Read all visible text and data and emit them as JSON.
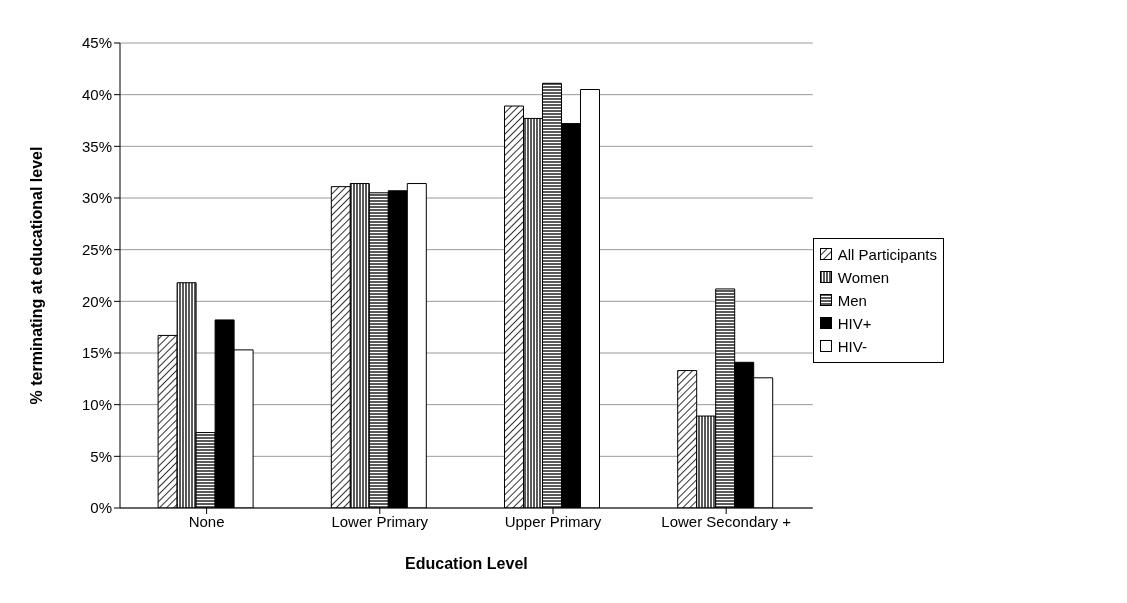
{
  "chart_data": {
    "type": "bar",
    "xlabel": "Education Level",
    "ylabel": "% terminating at educational level",
    "categories": [
      "None",
      "Lower Primary",
      "Upper Primary",
      "Lower Secondary +"
    ],
    "series": [
      {
        "name": "All Participants",
        "color": "#000000",
        "values": [
          16.7,
          31.1,
          38.9,
          13.3
        ]
      },
      {
        "name": "Women",
        "color": "#000000",
        "values": [
          21.8,
          31.4,
          37.7,
          8.9
        ]
      },
      {
        "name": "Men",
        "color": "#000000",
        "values": [
          7.3,
          30.5,
          41.1,
          21.2
        ]
      },
      {
        "name": "HIV+",
        "color": "#000000",
        "values": [
          18.2,
          30.7,
          37.2,
          14.1
        ]
      },
      {
        "name": "HIV-",
        "color": "#ffffff",
        "values": [
          15.3,
          31.4,
          40.5,
          12.6
        ]
      }
    ],
    "ylim": [
      0,
      45
    ],
    "yticks": [
      {
        "value": 0,
        "label": "0%"
      },
      {
        "value": 5,
        "label": "5%"
      },
      {
        "value": 10,
        "label": "10%"
      },
      {
        "value": 15,
        "label": "15%"
      },
      {
        "value": 20,
        "label": "20%"
      },
      {
        "value": 25,
        "label": "25%"
      },
      {
        "value": 30,
        "label": "30%"
      },
      {
        "value": 35,
        "label": "35%"
      },
      {
        "value": 40,
        "label": "40%"
      },
      {
        "value": 45,
        "label": "45%"
      }
    ],
    "grid": "y",
    "legend": "right"
  }
}
